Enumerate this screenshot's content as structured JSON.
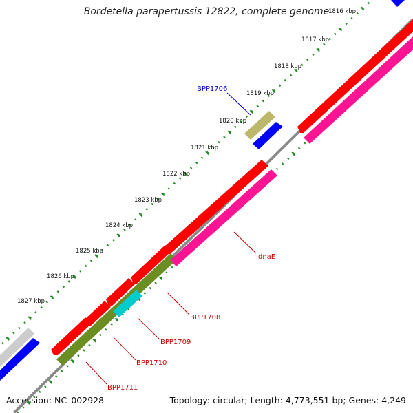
{
  "title": "Bordetella parapertussis 12822, complete genome",
  "footer": {
    "accession": "Accession: NC_002928",
    "topology": "Topology: circular; Length: 4,773,551 bp; Genes: 4,249"
  },
  "ticks": [
    "1816 kbp",
    "1817 kbp",
    "1818 kbp",
    "1819 kbp",
    "1820 kbp",
    "1821 kbp",
    "1822 kbp",
    "1823 kbp",
    "1824 kbp",
    "1825 kbp",
    "1826 kbp",
    "1827 kbp"
  ],
  "gene_labels": [
    {
      "text": "BPP1706",
      "color": "#0000cc"
    },
    {
      "text": "dnaE",
      "color": "#cc0000"
    },
    {
      "text": "BPP1708",
      "color": "#cc0000"
    },
    {
      "text": "BPP1709",
      "color": "#cc0000"
    },
    {
      "text": "BPP1710",
      "color": "#cc0000"
    },
    {
      "text": "BPP1711",
      "color": "#cc0000"
    }
  ],
  "colors": {
    "forward_cds": "#ff0000",
    "reverse_cds": "#ff1493",
    "blue_feature": "#0000ff",
    "olive_feature": "#6b8e23",
    "cyan_feature": "#00cccc",
    "khaki_feature": "#bdb76b",
    "gray_feature": "#cccccc",
    "backbone": "#808080",
    "tick_color": "#228b22"
  }
}
